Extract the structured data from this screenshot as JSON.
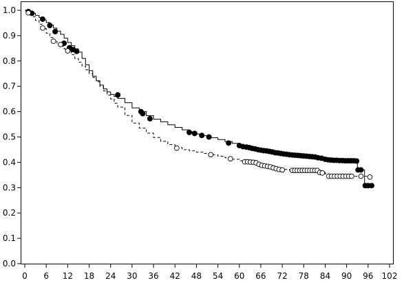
{
  "chart_data": {
    "type": "line",
    "title": "",
    "xlabel": "",
    "ylabel": "",
    "xlim": [
      0,
      102
    ],
    "ylim": [
      0,
      1.0
    ],
    "x_ticks": [
      0,
      6,
      12,
      18,
      24,
      30,
      36,
      42,
      48,
      54,
      60,
      66,
      72,
      78,
      84,
      90,
      96,
      102
    ],
    "y_ticks": [
      0.0,
      0.1,
      0.2,
      0.3,
      0.4,
      0.5,
      0.6,
      0.7,
      0.8,
      0.9,
      1.0
    ],
    "y_tick_labels": [
      "0.0",
      "0.1",
      "0.2",
      "0.3",
      "0.4",
      "0.5",
      "0.6",
      "0.7",
      "0.8",
      "0.9",
      "1.0"
    ],
    "grid": false,
    "legend": "none",
    "series": [
      {
        "line_style": "solid",
        "marker": "filled-circle",
        "color": "#000000",
        "steps": [
          [
            0,
            1.0
          ],
          [
            1,
            0.995
          ],
          [
            2,
            0.988
          ],
          [
            3,
            0.98
          ],
          [
            4,
            0.972
          ],
          [
            5,
            0.962
          ],
          [
            6,
            0.952
          ],
          [
            7,
            0.942
          ],
          [
            8,
            0.93
          ],
          [
            9,
            0.918
          ],
          [
            10,
            0.905
          ],
          [
            11,
            0.89
          ],
          [
            12,
            0.873
          ],
          [
            13,
            0.86
          ],
          [
            14,
            0.848
          ],
          [
            15,
            0.835
          ],
          [
            16,
            0.81
          ],
          [
            17,
            0.785
          ],
          [
            18,
            0.762
          ],
          [
            19,
            0.74
          ],
          [
            20,
            0.722
          ],
          [
            21,
            0.705
          ],
          [
            22,
            0.69
          ],
          [
            23,
            0.678
          ],
          [
            24,
            0.668
          ],
          [
            25,
            0.66
          ],
          [
            26,
            0.652
          ],
          [
            28,
            0.635
          ],
          [
            30,
            0.615
          ],
          [
            32,
            0.6
          ],
          [
            34,
            0.584
          ],
          [
            36,
            0.57
          ],
          [
            38,
            0.56
          ],
          [
            40,
            0.548
          ],
          [
            42,
            0.538
          ],
          [
            44,
            0.528
          ],
          [
            46,
            0.52
          ],
          [
            48,
            0.512
          ],
          [
            50,
            0.505
          ],
          [
            52,
            0.497
          ],
          [
            54,
            0.49
          ],
          [
            56,
            0.482
          ],
          [
            58,
            0.475
          ],
          [
            60,
            0.466
          ],
          [
            62,
            0.46
          ],
          [
            64,
            0.454
          ],
          [
            66,
            0.448
          ],
          [
            68,
            0.443
          ],
          [
            70,
            0.438
          ],
          [
            72,
            0.433
          ],
          [
            74,
            0.428
          ],
          [
            76,
            0.424
          ],
          [
            78,
            0.42
          ],
          [
            80,
            0.417
          ],
          [
            82,
            0.413
          ],
          [
            84,
            0.41
          ],
          [
            86,
            0.408
          ],
          [
            88,
            0.407
          ],
          [
            90,
            0.406
          ],
          [
            93,
            0.405
          ],
          [
            93.01,
            0.37
          ],
          [
            95,
            0.37
          ],
          [
            95.01,
            0.308
          ],
          [
            97,
            0.308
          ]
        ],
        "censored": [
          [
            1,
            0.995
          ],
          [
            2,
            0.988
          ],
          [
            5,
            0.965
          ],
          [
            7,
            0.94
          ],
          [
            8.5,
            0.916
          ],
          [
            11,
            0.87
          ],
          [
            12.5,
            0.852
          ],
          [
            13.5,
            0.845
          ],
          [
            14.5,
            0.838
          ],
          [
            26,
            0.666
          ],
          [
            32.5,
            0.6
          ],
          [
            33,
            0.592
          ],
          [
            35,
            0.572
          ],
          [
            46,
            0.518
          ],
          [
            47.5,
            0.514
          ],
          [
            49.5,
            0.506
          ],
          [
            51.5,
            0.5
          ],
          [
            57,
            0.476
          ],
          [
            60,
            0.466
          ],
          [
            61,
            0.462
          ],
          [
            62,
            0.46
          ],
          [
            62.8,
            0.458
          ],
          [
            63.6,
            0.455
          ],
          [
            64.4,
            0.453
          ],
          [
            65.2,
            0.45
          ],
          [
            66,
            0.448
          ],
          [
            66.8,
            0.446
          ],
          [
            67.6,
            0.445
          ],
          [
            68.4,
            0.443
          ],
          [
            69.2,
            0.441
          ],
          [
            70,
            0.438
          ],
          [
            70.8,
            0.437
          ],
          [
            71.6,
            0.435
          ],
          [
            72.4,
            0.433
          ],
          [
            73.2,
            0.432
          ],
          [
            74,
            0.43
          ],
          [
            74.8,
            0.429
          ],
          [
            75.6,
            0.428
          ],
          [
            76.4,
            0.427
          ],
          [
            77.2,
            0.426
          ],
          [
            78,
            0.425
          ],
          [
            78.8,
            0.424
          ],
          [
            79.6,
            0.423
          ],
          [
            80.4,
            0.422
          ],
          [
            81.2,
            0.421
          ],
          [
            82,
            0.418
          ],
          [
            83,
            0.416
          ],
          [
            84,
            0.412
          ],
          [
            84.8,
            0.41
          ],
          [
            85.6,
            0.409
          ],
          [
            86.4,
            0.408
          ],
          [
            87.2,
            0.408
          ],
          [
            88,
            0.407
          ],
          [
            88.8,
            0.407
          ],
          [
            89.6,
            0.406
          ],
          [
            90.4,
            0.406
          ],
          [
            91.2,
            0.406
          ],
          [
            92,
            0.406
          ],
          [
            92.8,
            0.405
          ],
          [
            93.2,
            0.37
          ],
          [
            94,
            0.37
          ],
          [
            95.2,
            0.308
          ],
          [
            96,
            0.308
          ],
          [
            97,
            0.308
          ]
        ]
      },
      {
        "line_style": "dashed",
        "marker": "open-circle",
        "color": "#000000",
        "steps": [
          [
            0,
            1.0
          ],
          [
            1,
            0.99
          ],
          [
            2,
            0.975
          ],
          [
            3,
            0.96
          ],
          [
            4,
            0.945
          ],
          [
            5,
            0.928
          ],
          [
            6,
            0.91
          ],
          [
            7,
            0.893
          ],
          [
            8,
            0.878
          ],
          [
            9,
            0.868
          ],
          [
            10,
            0.858
          ],
          [
            11,
            0.848
          ],
          [
            12,
            0.838
          ],
          [
            13,
            0.825
          ],
          [
            14,
            0.81
          ],
          [
            15,
            0.795
          ],
          [
            16,
            0.78
          ],
          [
            17,
            0.765
          ],
          [
            18,
            0.75
          ],
          [
            19,
            0.735
          ],
          [
            20,
            0.718
          ],
          [
            21,
            0.7
          ],
          [
            22,
            0.682
          ],
          [
            23,
            0.665
          ],
          [
            24,
            0.65
          ],
          [
            25,
            0.633
          ],
          [
            26,
            0.618
          ],
          [
            28,
            0.585
          ],
          [
            30,
            0.555
          ],
          [
            32,
            0.535
          ],
          [
            34,
            0.515
          ],
          [
            36,
            0.498
          ],
          [
            38,
            0.483
          ],
          [
            40,
            0.47
          ],
          [
            42,
            0.458
          ],
          [
            44,
            0.45
          ],
          [
            46,
            0.445
          ],
          [
            48,
            0.44
          ],
          [
            50,
            0.435
          ],
          [
            52,
            0.43
          ],
          [
            54,
            0.424
          ],
          [
            56,
            0.418
          ],
          [
            58,
            0.412
          ],
          [
            60,
            0.406
          ],
          [
            62,
            0.401
          ],
          [
            64,
            0.396
          ],
          [
            66,
            0.389
          ],
          [
            68,
            0.382
          ],
          [
            70,
            0.377
          ],
          [
            72,
            0.372
          ],
          [
            74,
            0.369
          ],
          [
            76,
            0.367
          ],
          [
            78,
            0.367
          ],
          [
            80,
            0.363
          ],
          [
            82,
            0.36
          ],
          [
            84,
            0.355
          ],
          [
            85,
            0.345
          ],
          [
            90,
            0.345
          ],
          [
            92,
            0.345
          ],
          [
            97,
            0.342
          ]
        ],
        "censored": [
          [
            1,
            0.99
          ],
          [
            5,
            0.93
          ],
          [
            8,
            0.878
          ],
          [
            10,
            0.865
          ],
          [
            12,
            0.84
          ],
          [
            42.5,
            0.456
          ],
          [
            52,
            0.43
          ],
          [
            57.5,
            0.414
          ],
          [
            61.5,
            0.402
          ],
          [
            62.3,
            0.402
          ],
          [
            63.1,
            0.401
          ],
          [
            63.9,
            0.4
          ],
          [
            64.7,
            0.398
          ],
          [
            65.5,
            0.392
          ],
          [
            66.3,
            0.388
          ],
          [
            67.1,
            0.386
          ],
          [
            67.9,
            0.384
          ],
          [
            68.7,
            0.382
          ],
          [
            69.5,
            0.378
          ],
          [
            70.3,
            0.375
          ],
          [
            71.1,
            0.372
          ],
          [
            72,
            0.37
          ],
          [
            74.8,
            0.368
          ],
          [
            75.5,
            0.368
          ],
          [
            76.2,
            0.368
          ],
          [
            76.9,
            0.368
          ],
          [
            77.6,
            0.368
          ],
          [
            78.3,
            0.368
          ],
          [
            79,
            0.368
          ],
          [
            79.7,
            0.368
          ],
          [
            80.4,
            0.368
          ],
          [
            81.1,
            0.368
          ],
          [
            81.8,
            0.368
          ],
          [
            82.5,
            0.36
          ],
          [
            83.2,
            0.358
          ],
          [
            85,
            0.345
          ],
          [
            85.8,
            0.345
          ],
          [
            86.6,
            0.345
          ],
          [
            87.4,
            0.345
          ],
          [
            88.2,
            0.345
          ],
          [
            89,
            0.345
          ],
          [
            89.8,
            0.345
          ],
          [
            90.6,
            0.345
          ],
          [
            91.4,
            0.345
          ],
          [
            94,
            0.345
          ],
          [
            96.5,
            0.342
          ]
        ]
      }
    ]
  }
}
